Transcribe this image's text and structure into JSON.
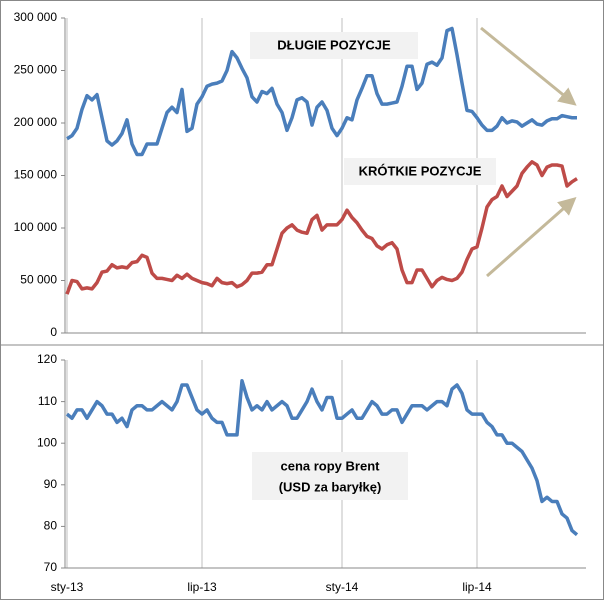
{
  "chart_data": [
    {
      "type": "line",
      "annotations": [
        "DŁUGIE POZYCJE",
        "KRÓTKIE POZYCJE"
      ],
      "series": [
        {
          "color": "#4a7ebb",
          "values": [
            185000,
            188000,
            195000,
            213000,
            226000,
            222000,
            227000,
            205000,
            183000,
            179000,
            183000,
            190000,
            203000,
            180000,
            170000,
            170000,
            180000,
            180000,
            180000,
            195000,
            210000,
            215000,
            210000,
            232000,
            192000,
            195000,
            218000,
            225000,
            235000,
            237000,
            238000,
            240000,
            250000,
            268000,
            262000,
            252000,
            243000,
            225000,
            220000,
            230000,
            228000,
            233000,
            218000,
            210000,
            193000,
            205000,
            222000,
            224000,
            220000,
            198000,
            215000,
            220000,
            212000,
            195000,
            188000,
            195000,
            205000,
            203000,
            222000,
            233000,
            245000,
            245000,
            228000,
            218000,
            218000,
            219000,
            220000,
            235000,
            254000,
            254000,
            232000,
            238000,
            256000,
            258000,
            255000,
            262000,
            288000,
            290000,
            265000,
            238000,
            212000,
            211000,
            205000,
            198000,
            193000,
            193000,
            197000,
            205000,
            200000,
            202000,
            201000,
            197000,
            200000,
            203000,
            199000,
            198000,
            202000,
            204000,
            204000,
            207000,
            206000,
            205000,
            205000
          ]
        },
        {
          "color": "#be4b48",
          "values": [
            37000,
            50000,
            49000,
            42000,
            43000,
            42000,
            48000,
            58000,
            59000,
            65000,
            62000,
            63000,
            62000,
            67000,
            68000,
            74000,
            72000,
            57000,
            52000,
            52000,
            51000,
            50000,
            55000,
            52000,
            56000,
            52000,
            50000,
            48000,
            47000,
            45000,
            52000,
            48000,
            47000,
            48000,
            44000,
            46000,
            50000,
            57000,
            57000,
            58000,
            65000,
            65000,
            80000,
            95000,
            100000,
            103000,
            98000,
            96000,
            95000,
            108000,
            112000,
            98000,
            103000,
            103000,
            103000,
            108000,
            117000,
            110000,
            105000,
            98000,
            92000,
            90000,
            83000,
            80000,
            84000,
            86000,
            80000,
            60000,
            48000,
            48000,
            60000,
            60000,
            52000,
            44000,
            50000,
            53000,
            51000,
            50000,
            52000,
            58000,
            70000,
            80000,
            82000,
            100000,
            120000,
            127000,
            130000,
            140000,
            130000,
            135000,
            140000,
            152000,
            158000,
            163000,
            160000,
            150000,
            158000,
            160000,
            160000,
            159000,
            140000,
            144000,
            147000
          ]
        }
      ],
      "ylim": [
        0,
        300000
      ],
      "yticks": [
        0,
        {
          "value": 50000,
          "label": "50 000"
        },
        {
          "value": 100000,
          "label": "100 000"
        },
        {
          "value": 150000,
          "label": "150 000"
        },
        {
          "value": 200000,
          "label": "200 000"
        },
        {
          "value": 250000,
          "label": "250 000"
        },
        {
          "value": 300000,
          "label": "300 000"
        }
      ]
    },
    {
      "type": "line",
      "annotations": [
        "cena ropy Brent",
        "(USD za baryłkę)"
      ],
      "categories": [
        "sty-13",
        null,
        null,
        null,
        null,
        null,
        null,
        null,
        null,
        null,
        null,
        null,
        null,
        null,
        null,
        null,
        null,
        null,
        null,
        null,
        null,
        null,
        null,
        null,
        null,
        null,
        null,
        "lip-13",
        null,
        null,
        null,
        null,
        null,
        null,
        null,
        null,
        null,
        null,
        null,
        null,
        null,
        null,
        null,
        null,
        null,
        null,
        null,
        null,
        null,
        null,
        null,
        null,
        null,
        null,
        null,
        "sty-14",
        null,
        null,
        null,
        null,
        null,
        null,
        null,
        null,
        null,
        null,
        null,
        null,
        null,
        null,
        null,
        null,
        null,
        null,
        null,
        null,
        null,
        null,
        null,
        null,
        null,
        null,
        "lip-14",
        null,
        null,
        null,
        null,
        null,
        null,
        null,
        null,
        null,
        null,
        null,
        null,
        null,
        null,
        null,
        null,
        null,
        null,
        null,
        null
      ],
      "series": [
        {
          "color": "#4a7ebb",
          "values": [
            107,
            106,
            108,
            108,
            106,
            108,
            110,
            109,
            107,
            107,
            105,
            106,
            104,
            108,
            109,
            109,
            108,
            108,
            109,
            110,
            109,
            108,
            110,
            114,
            114,
            111,
            108,
            107,
            108,
            106,
            105,
            105,
            102,
            102,
            102,
            115,
            111,
            108,
            109,
            108,
            110,
            108,
            109,
            110,
            109,
            106,
            106,
            108,
            110,
            113,
            110,
            108,
            111,
            111,
            106,
            106,
            107,
            108,
            106,
            106,
            108,
            110,
            109,
            107,
            107,
            108,
            108,
            105,
            107,
            109,
            109,
            109,
            108,
            109,
            110,
            110,
            109,
            113,
            114,
            112,
            108,
            107,
            107,
            107,
            105,
            104,
            102,
            102,
            100,
            100,
            99,
            98,
            96,
            94,
            91,
            86,
            87,
            86,
            86,
            83,
            82,
            79,
            78
          ]
        }
      ],
      "ylim": [
        70,
        120
      ],
      "yticks": [
        70,
        80,
        90,
        100,
        110,
        120
      ]
    }
  ]
}
